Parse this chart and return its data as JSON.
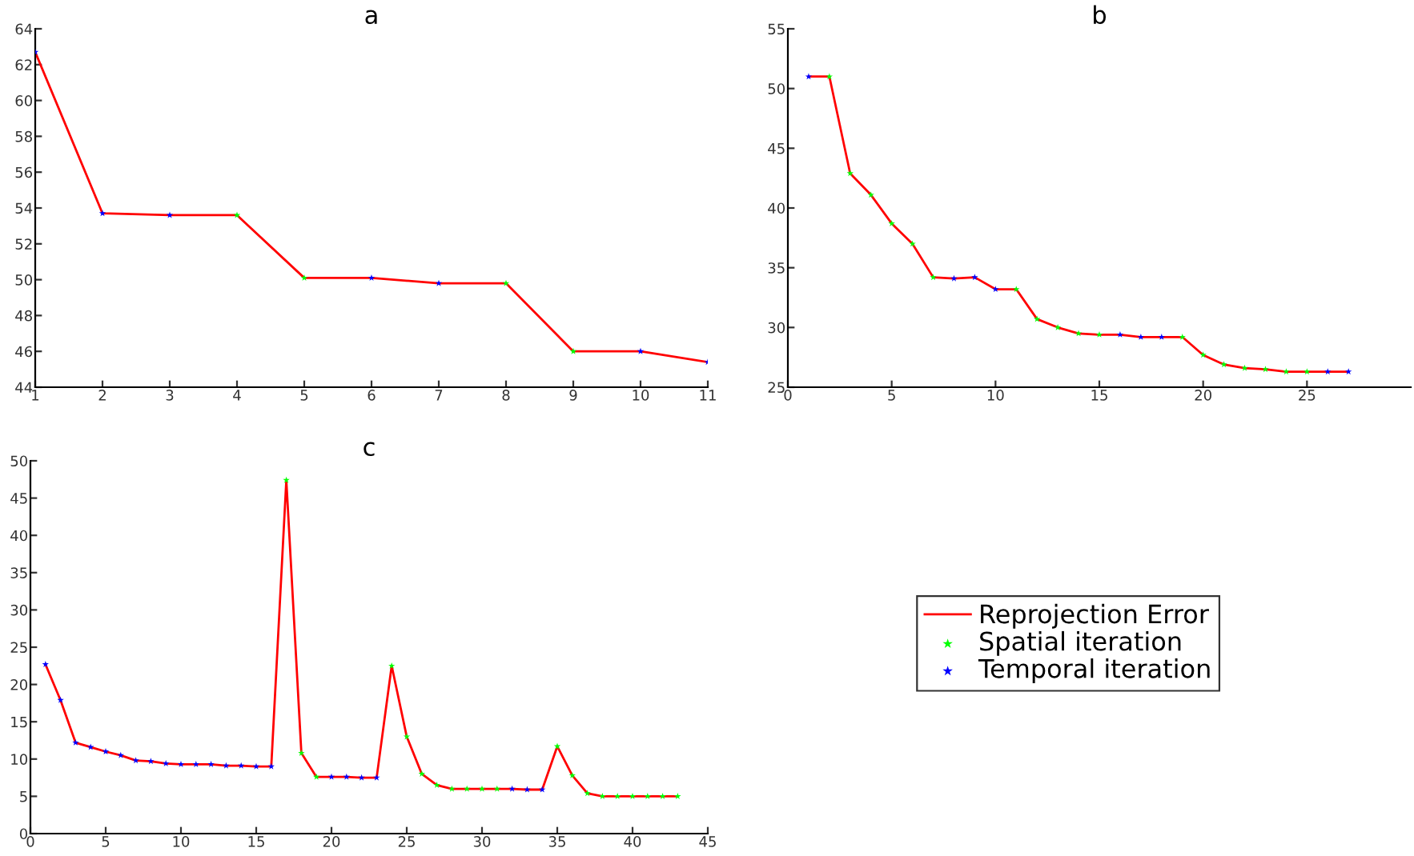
{
  "chart_data": [
    {
      "type": "line",
      "title": "a",
      "xlim": [
        1,
        11
      ],
      "xticks": [
        1,
        2,
        3,
        4,
        5,
        6,
        7,
        8,
        9,
        10,
        11
      ],
      "ylim": [
        44,
        64
      ],
      "yticks": [
        44,
        46,
        48,
        50,
        52,
        54,
        56,
        58,
        60,
        62,
        64
      ],
      "grid": false,
      "legend": false,
      "series": [
        {
          "color": "#ff0000",
          "x": [
            1,
            2,
            3,
            4,
            5,
            6,
            7,
            8,
            9,
            10,
            11
          ],
          "values": [
            62.7,
            53.7,
            53.6,
            53.6,
            50.1,
            50.1,
            49.8,
            49.8,
            46.0,
            46.0,
            45.4
          ]
        },
        {
          "type": "scatter",
          "color": "#00ff00",
          "marker": "star",
          "x": [
            4,
            5,
            8,
            9
          ],
          "values": [
            53.6,
            50.1,
            49.8,
            46.0
          ]
        },
        {
          "type": "scatter",
          "color": "#0000ff",
          "marker": "star",
          "x": [
            1,
            2,
            3,
            6,
            7,
            10,
            11
          ],
          "values": [
            62.7,
            53.7,
            53.6,
            50.1,
            49.8,
            46.0,
            45.4
          ]
        }
      ]
    },
    {
      "type": "line",
      "title": "b",
      "xlim": [
        0,
        30
      ],
      "xticks": [
        0,
        5,
        10,
        15,
        20,
        25
      ],
      "ylim": [
        25,
        55
      ],
      "yticks": [
        25,
        30,
        35,
        40,
        45,
        50,
        55
      ],
      "grid": false,
      "legend": false,
      "series": [
        {
          "color": "#ff0000",
          "x": [
            1,
            2,
            3,
            4,
            5,
            6,
            7,
            8,
            9,
            10,
            11,
            12,
            13,
            14,
            15,
            16,
            17,
            18,
            19,
            20,
            21,
            22,
            23,
            24,
            25,
            26,
            27
          ],
          "values": [
            51.0,
            51.0,
            42.9,
            41.1,
            38.7,
            37.0,
            34.2,
            34.1,
            34.2,
            33.2,
            33.2,
            30.7,
            30.0,
            29.5,
            29.4,
            29.4,
            29.2,
            29.2,
            29.2,
            27.7,
            26.9,
            26.6,
            26.5,
            26.3,
            26.3,
            26.3,
            26.3
          ]
        },
        {
          "type": "scatter",
          "color": "#00ff00",
          "marker": "star",
          "x": [
            2,
            3,
            4,
            5,
            6,
            7,
            11,
            12,
            13,
            14,
            15,
            19,
            20,
            21,
            22,
            23,
            24,
            25
          ],
          "values": [
            51.0,
            42.9,
            41.1,
            38.7,
            37.0,
            34.2,
            33.2,
            30.7,
            30.0,
            29.5,
            29.4,
            29.2,
            27.7,
            26.9,
            26.6,
            26.5,
            26.3,
            26.3
          ]
        },
        {
          "type": "scatter",
          "color": "#0000ff",
          "marker": "star",
          "x": [
            1,
            8,
            9,
            10,
            16,
            17,
            18,
            26,
            27
          ],
          "values": [
            51.0,
            34.1,
            34.2,
            33.2,
            29.4,
            29.2,
            29.2,
            26.3,
            26.3
          ]
        }
      ]
    },
    {
      "type": "line",
      "title": "c",
      "xlim": [
        0,
        45
      ],
      "xticks": [
        0,
        5,
        10,
        15,
        20,
        25,
        30,
        35,
        40,
        45
      ],
      "ylim": [
        0,
        50
      ],
      "yticks": [
        0,
        5,
        10,
        15,
        20,
        25,
        30,
        35,
        40,
        45,
        50
      ],
      "grid": false,
      "legend": "right",
      "series": [
        {
          "name": "Reprojection Error",
          "color": "#ff0000",
          "x": [
            1,
            2,
            3,
            4,
            5,
            6,
            7,
            8,
            9,
            10,
            11,
            12,
            13,
            14,
            15,
            16,
            17,
            18,
            19,
            20,
            21,
            22,
            23,
            24,
            25,
            26,
            27,
            28,
            29,
            30,
            31,
            32,
            33,
            34,
            35,
            36,
            37,
            38,
            39,
            40,
            41,
            42,
            43
          ],
          "values": [
            22.7,
            17.9,
            12.2,
            11.6,
            11.0,
            10.5,
            9.8,
            9.7,
            9.4,
            9.3,
            9.3,
            9.3,
            9.1,
            9.1,
            9.0,
            9.0,
            47.4,
            10.8,
            7.6,
            7.6,
            7.6,
            7.5,
            7.5,
            22.5,
            13.0,
            8.0,
            6.5,
            6.0,
            6.0,
            6.0,
            6.0,
            6.0,
            5.9,
            5.9,
            11.7,
            7.8,
            5.4,
            5.0,
            5.0,
            5.0,
            5.0,
            5.0,
            5.0
          ]
        },
        {
          "type": "scatter",
          "name": "Spatial iteration",
          "color": "#00ff00",
          "marker": "star",
          "x": [
            17,
            18,
            19,
            24,
            25,
            26,
            27,
            28,
            29,
            30,
            31,
            35,
            36,
            37,
            38,
            39,
            40,
            41,
            42,
            43
          ],
          "values": [
            47.4,
            10.8,
            7.6,
            22.5,
            13.0,
            8.0,
            6.5,
            6.0,
            6.0,
            6.0,
            6.0,
            11.7,
            7.8,
            5.4,
            5.0,
            5.0,
            5.0,
            5.0,
            5.0,
            5.0
          ]
        },
        {
          "type": "scatter",
          "name": "Temporal iteration",
          "color": "#0000ff",
          "marker": "star",
          "x": [
            1,
            2,
            3,
            4,
            5,
            6,
            7,
            8,
            9,
            10,
            11,
            12,
            13,
            14,
            15,
            16,
            20,
            21,
            22,
            23,
            32,
            33,
            34
          ],
          "values": [
            22.7,
            17.9,
            12.2,
            11.6,
            11.0,
            10.5,
            9.8,
            9.7,
            9.4,
            9.3,
            9.3,
            9.3,
            9.1,
            9.1,
            9.0,
            9.0,
            7.6,
            7.6,
            7.5,
            7.5,
            6.0,
            5.9,
            5.9
          ]
        }
      ]
    }
  ]
}
